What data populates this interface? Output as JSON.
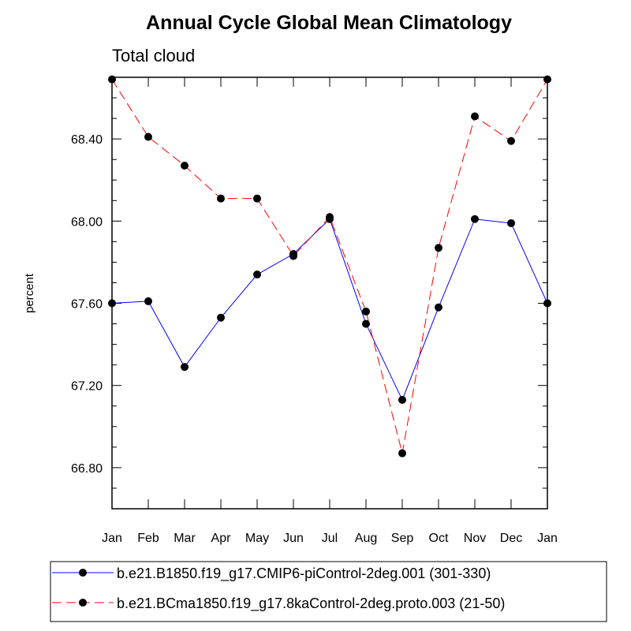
{
  "chart_data": {
    "type": "line",
    "title": "Annual Cycle Global Mean Climatology",
    "subtitle": "Total cloud",
    "xlabel": "",
    "ylabel": "percent",
    "categories": [
      "Jan",
      "Feb",
      "Mar",
      "Apr",
      "May",
      "Jun",
      "Jul",
      "Aug",
      "Sep",
      "Oct",
      "Nov",
      "Dec",
      "Jan"
    ],
    "ylim": [
      66.6,
      68.7
    ],
    "yticks": [
      66.8,
      67.2,
      67.6,
      68.0,
      68.4
    ],
    "ytick_labels": [
      "66.80",
      "67.20",
      "67.60",
      "68.00",
      "68.40"
    ],
    "grid": false,
    "legend_position": "bottom",
    "series": [
      {
        "name": "b.e21.B1850.f19_g17.CMIP6-piControl-2deg.001 (301-330)",
        "color": "#0000ff",
        "dash": "solid",
        "values": [
          67.6,
          67.61,
          67.29,
          67.53,
          67.74,
          67.84,
          68.01,
          67.5,
          67.13,
          67.58,
          68.01,
          67.99,
          67.6
        ]
      },
      {
        "name": "b.e21.BCma1850.f19_g17.8kaControl-2deg.proto.003 (21-50)",
        "color": "#ff0000",
        "dash": "dashed",
        "values": [
          68.69,
          68.41,
          68.27,
          68.11,
          68.11,
          67.83,
          68.02,
          67.56,
          66.87,
          67.87,
          68.51,
          68.39,
          68.69
        ]
      }
    ]
  }
}
